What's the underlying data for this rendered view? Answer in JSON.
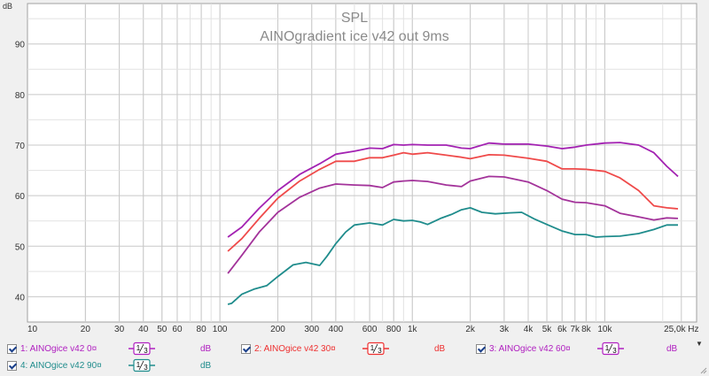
{
  "chart_data": {
    "type": "line",
    "title": "SPL",
    "subtitle": "AINOgradient ice v42 out 9ms",
    "yunit": "dB",
    "xunit": "Hz",
    "xscale": "log",
    "xlim": [
      10,
      30000
    ],
    "ylim": [
      35,
      98
    ],
    "grid": true,
    "y_ticks": [
      40,
      50,
      60,
      70,
      80,
      90
    ],
    "x_ticks": [
      {
        "v": 10,
        "label": "10"
      },
      {
        "v": 20,
        "label": "20"
      },
      {
        "v": 30,
        "label": "30"
      },
      {
        "v": 40,
        "label": "40"
      },
      {
        "v": 50,
        "label": "50"
      },
      {
        "v": 60,
        "label": "60"
      },
      {
        "v": 80,
        "label": "80"
      },
      {
        "v": 100,
        "label": "100"
      },
      {
        "v": 200,
        "label": "200"
      },
      {
        "v": 300,
        "label": "300"
      },
      {
        "v": 400,
        "label": "400"
      },
      {
        "v": 600,
        "label": "600"
      },
      {
        "v": 800,
        "label": "800"
      },
      {
        "v": 1000,
        "label": "1k"
      },
      {
        "v": 2000,
        "label": "2k"
      },
      {
        "v": 3000,
        "label": "3k"
      },
      {
        "v": 4000,
        "label": "4k"
      },
      {
        "v": 5000,
        "label": "5k"
      },
      {
        "v": 6000,
        "label": "6k"
      },
      {
        "v": 7000,
        "label": "7k"
      },
      {
        "v": 8000,
        "label": "8k"
      },
      {
        "v": 10000,
        "label": "10k"
      },
      {
        "v": 25000,
        "label": "25,0k Hz"
      }
    ],
    "series": [
      {
        "name": "AINOgice v42 0¤",
        "color": "#a322b2",
        "x": [
          110,
          130,
          160,
          200,
          260,
          330,
          400,
          500,
          600,
          700,
          800,
          900,
          1000,
          1200,
          1500,
          1800,
          2000,
          2500,
          3000,
          4000,
          5000,
          6000,
          7000,
          8000,
          10000,
          12000,
          15000,
          18000,
          21000,
          24000
        ],
        "y": [
          51.8,
          53.8,
          57.5,
          61.0,
          64.2,
          66.3,
          68.2,
          68.8,
          69.4,
          69.3,
          70.1,
          70.0,
          70.1,
          70.0,
          70.0,
          69.4,
          69.3,
          70.4,
          70.2,
          70.2,
          69.8,
          69.3,
          69.6,
          70.0,
          70.4,
          70.5,
          70.0,
          68.5,
          65.8,
          63.8
        ]
      },
      {
        "name": "AINOgice v42 30¤",
        "color": "#ef4a4a",
        "x": [
          110,
          130,
          160,
          200,
          260,
          330,
          400,
          500,
          600,
          700,
          800,
          900,
          1000,
          1200,
          1500,
          1800,
          2000,
          2500,
          3000,
          4000,
          5000,
          6000,
          7000,
          8000,
          10000,
          12000,
          15000,
          18000,
          21000,
          24000
        ],
        "y": [
          49.0,
          51.5,
          55.5,
          59.5,
          62.9,
          65.2,
          66.8,
          66.8,
          67.5,
          67.5,
          68.0,
          68.5,
          68.2,
          68.5,
          68.0,
          67.6,
          67.3,
          68.1,
          68.0,
          67.4,
          66.8,
          65.3,
          65.3,
          65.2,
          64.8,
          63.5,
          61.0,
          58.0,
          57.6,
          57.4
        ]
      },
      {
        "name": "AINOgice v42 60¤",
        "color": "#a3339a",
        "x": [
          110,
          130,
          160,
          200,
          260,
          330,
          400,
          500,
          600,
          700,
          800,
          900,
          1000,
          1200,
          1500,
          1800,
          2000,
          2500,
          3000,
          4000,
          5000,
          6000,
          7000,
          8000,
          10000,
          12000,
          15000,
          18000,
          21000,
          24000
        ],
        "y": [
          44.6,
          48.2,
          52.8,
          56.7,
          59.7,
          61.5,
          62.3,
          62.1,
          62.0,
          61.6,
          62.7,
          62.9,
          63.0,
          62.8,
          62.1,
          61.8,
          62.9,
          63.8,
          63.7,
          62.7,
          61.0,
          59.3,
          58.7,
          58.6,
          58.0,
          56.5,
          55.8,
          55.2,
          55.6,
          55.5
        ]
      },
      {
        "name": "AINOgice v42 90¤",
        "color": "#1f8c8c",
        "x": [
          110,
          115,
          130,
          150,
          175,
          200,
          240,
          280,
          330,
          360,
          400,
          450,
          500,
          600,
          700,
          800,
          900,
          1000,
          1100,
          1200,
          1400,
          1600,
          1800,
          2000,
          2300,
          2700,
          3200,
          3700,
          4300,
          5000,
          6000,
          7000,
          8000,
          9000,
          10000,
          12000,
          15000,
          18000,
          21000,
          24000
        ],
        "y": [
          38.5,
          38.7,
          40.5,
          41.5,
          42.2,
          44.0,
          46.3,
          46.8,
          46.2,
          48.0,
          50.5,
          52.8,
          54.2,
          54.6,
          54.2,
          55.3,
          55.0,
          55.1,
          54.8,
          54.3,
          55.5,
          56.3,
          57.2,
          57.6,
          56.7,
          56.4,
          56.6,
          56.7,
          55.4,
          54.3,
          53.0,
          52.3,
          52.3,
          51.8,
          51.9,
          52.0,
          52.5,
          53.3,
          54.2,
          54.2
        ]
      }
    ]
  },
  "legend": [
    {
      "index_label": "1:",
      "name": "AINOgice v42 0¤",
      "smoothing": "1/3",
      "unit": "dB",
      "color": "#b020c0",
      "checked": true
    },
    {
      "index_label": "2:",
      "name": "AINOgice v42 30¤",
      "smoothing": "1/3",
      "unit": "dB",
      "color": "#ee3030",
      "checked": true
    },
    {
      "index_label": "3:",
      "name": "AINOgice v42 60¤",
      "smoothing": "1/3",
      "unit": "dB",
      "color": "#b020c0",
      "checked": true
    },
    {
      "index_label": "4:",
      "name": "AINOgice v42 90¤",
      "smoothing": "1/3",
      "unit": "dB",
      "color": "#1f8c8c",
      "checked": true
    }
  ],
  "dropdown_glyph": "▼"
}
